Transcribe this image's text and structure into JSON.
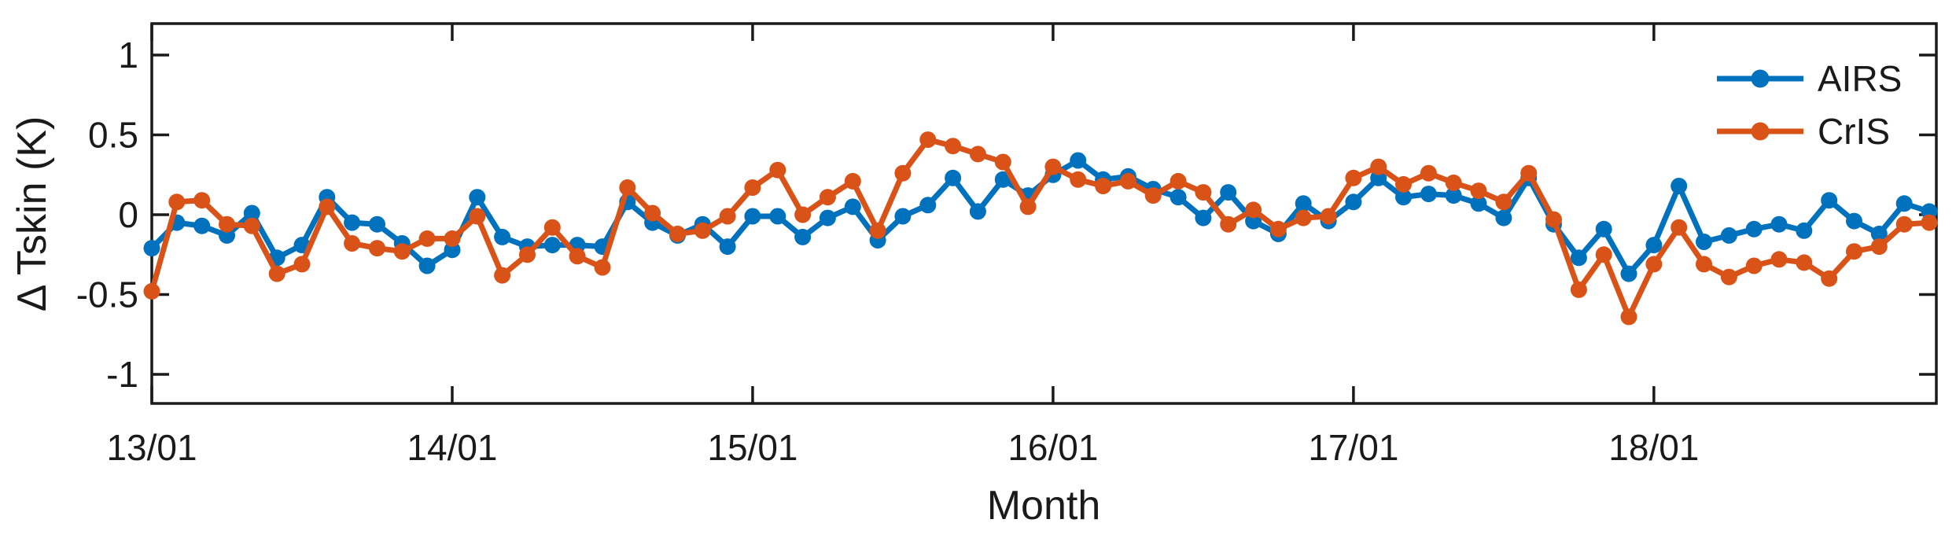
{
  "figure": {
    "background": "#ffffff",
    "axis_color": "#1a1a1a"
  },
  "chart_data": {
    "type": "line",
    "title": "",
    "xlabel": "Month",
    "ylabel": "Δ Tskin (K)",
    "x_start": "2013-01",
    "x_end": "2018-12",
    "points_per_series": 72,
    "x_tick_labels": [
      "13/01",
      "14/01",
      "15/01",
      "16/01",
      "17/01",
      "18/01"
    ],
    "x_tick_indices": [
      0,
      12,
      24,
      36,
      48,
      60
    ],
    "y_tick_labels": [
      "1",
      "0.5",
      "0",
      "-0.5",
      "-1"
    ],
    "y_ticks": [
      1,
      0.5,
      0,
      -0.5,
      -1
    ],
    "ylim": [
      -1.2,
      1.2
    ],
    "grid": false,
    "box": true,
    "tick_direction": "in",
    "legend_position": "top-right",
    "series": [
      {
        "name": "AIRS",
        "color": "#0072BD",
        "marker": "circle",
        "values": [
          -0.21,
          -0.05,
          -0.07,
          -0.13,
          0.01,
          -0.27,
          -0.19,
          0.11,
          -0.05,
          -0.06,
          -0.18,
          -0.32,
          -0.22,
          0.11,
          -0.14,
          -0.2,
          -0.19,
          -0.19,
          -0.2,
          0.08,
          -0.05,
          -0.13,
          -0.06,
          -0.2,
          -0.01,
          -0.01,
          -0.14,
          -0.02,
          0.05,
          -0.16,
          -0.01,
          0.06,
          0.23,
          0.02,
          0.22,
          0.12,
          0.25,
          0.34,
          0.22,
          0.24,
          0.16,
          0.11,
          -0.02,
          0.14,
          -0.04,
          -0.12,
          0.07,
          -0.04,
          0.08,
          0.23,
          0.11,
          0.13,
          0.12,
          0.07,
          -0.02,
          0.23,
          -0.06,
          -0.27,
          -0.09,
          -0.37,
          -0.19,
          0.18,
          -0.17,
          -0.13,
          -0.09,
          -0.06,
          -0.1,
          0.09,
          -0.04,
          -0.12,
          0.07,
          0.02
        ]
      },
      {
        "name": "CrIS",
        "color": "#D95319",
        "marker": "circle",
        "values": [
          -0.48,
          0.08,
          0.09,
          -0.06,
          -0.07,
          -0.37,
          -0.31,
          0.05,
          -0.18,
          -0.21,
          -0.23,
          -0.15,
          -0.15,
          -0.01,
          -0.38,
          -0.25,
          -0.08,
          -0.26,
          -0.33,
          0.17,
          0.01,
          -0.12,
          -0.1,
          -0.01,
          0.17,
          0.28,
          0.0,
          0.11,
          0.21,
          -0.1,
          0.26,
          0.47,
          0.43,
          0.38,
          0.33,
          0.05,
          0.3,
          0.22,
          0.18,
          0.21,
          0.12,
          0.21,
          0.14,
          -0.06,
          0.03,
          -0.09,
          -0.02,
          -0.01,
          0.23,
          0.3,
          0.19,
          0.26,
          0.2,
          0.15,
          0.08,
          0.26,
          -0.03,
          -0.47,
          -0.25,
          -0.64,
          -0.31,
          -0.08,
          -0.31,
          -0.39,
          -0.32,
          -0.28,
          -0.3,
          -0.4,
          -0.23,
          -0.2,
          -0.06,
          -0.05
        ]
      }
    ],
    "legend": [
      "AIRS",
      "CrIS"
    ]
  }
}
